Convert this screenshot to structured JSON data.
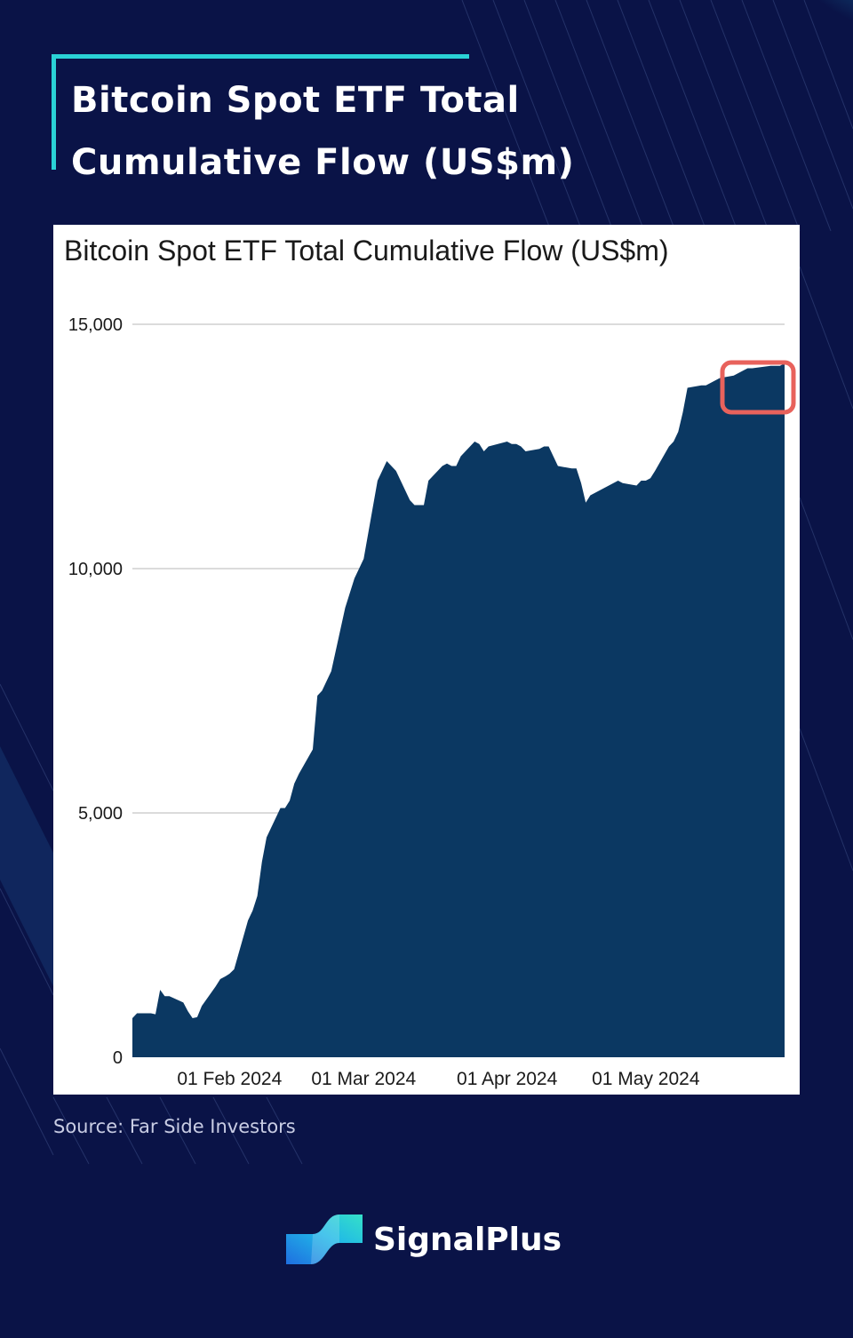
{
  "page": {
    "title": "Bitcoin Spot ETF Total Cumulative Flow (US$m)",
    "source": "Source: Far Side Investors",
    "brand_name": "SignalPlus",
    "colors": {
      "background": "#0a1347",
      "accent": "#2ad2d6",
      "area_fill": "#0b3862",
      "highlight_box": "#e8625c"
    }
  },
  "chart_data": {
    "type": "area",
    "title": "Bitcoin Spot ETF Total Cumulative Flow (US$m)",
    "xlabel": "",
    "ylabel": "",
    "ylim": [
      0,
      15000
    ],
    "yticks": [
      0,
      5000,
      10000,
      15000
    ],
    "ytick_labels": [
      "0",
      "5,000",
      "10,000",
      "15,000"
    ],
    "xtick_labels": [
      "01 Feb 2024",
      "01 Mar 2024",
      "01 Apr 2024",
      "01 May 2024"
    ],
    "xtick_dates": [
      "2024-02-01",
      "2024-03-01",
      "2024-04-01",
      "2024-05-01"
    ],
    "grid": true,
    "annotation": "highlight box around the latest values (late May 2024)",
    "series": [
      {
        "x": [
          "2024-01-11",
          "2024-01-12",
          "2024-01-15",
          "2024-01-16",
          "2024-01-17",
          "2024-01-18",
          "2024-01-19",
          "2024-01-22",
          "2024-01-23",
          "2024-01-24",
          "2024-01-25",
          "2024-01-26",
          "2024-01-29",
          "2024-01-30",
          "2024-01-31",
          "2024-02-01",
          "2024-02-02",
          "2024-02-05",
          "2024-02-06",
          "2024-02-07",
          "2024-02-08",
          "2024-02-09",
          "2024-02-12",
          "2024-02-13",
          "2024-02-14",
          "2024-02-15",
          "2024-02-16",
          "2024-02-19",
          "2024-02-20",
          "2024-02-21",
          "2024-02-22",
          "2024-02-23",
          "2024-02-26",
          "2024-02-27",
          "2024-02-28",
          "2024-02-29",
          "2024-03-01",
          "2024-03-04",
          "2024-03-05",
          "2024-03-06",
          "2024-03-07",
          "2024-03-08",
          "2024-03-11",
          "2024-03-12",
          "2024-03-13",
          "2024-03-14",
          "2024-03-15",
          "2024-03-18",
          "2024-03-19",
          "2024-03-20",
          "2024-03-21",
          "2024-03-22",
          "2024-03-25",
          "2024-03-26",
          "2024-03-27",
          "2024-03-28",
          "2024-04-01",
          "2024-04-02",
          "2024-04-03",
          "2024-04-04",
          "2024-04-05",
          "2024-04-08",
          "2024-04-09",
          "2024-04-10",
          "2024-04-11",
          "2024-04-12",
          "2024-04-15",
          "2024-04-16",
          "2024-04-17",
          "2024-04-18",
          "2024-04-19",
          "2024-04-22",
          "2024-04-23",
          "2024-04-24",
          "2024-04-25",
          "2024-04-26",
          "2024-04-29",
          "2024-04-30",
          "2024-05-01",
          "2024-05-02",
          "2024-05-03",
          "2024-05-06",
          "2024-05-07",
          "2024-05-08",
          "2024-05-09",
          "2024-05-10",
          "2024-05-13",
          "2024-05-14",
          "2024-05-15",
          "2024-05-16",
          "2024-05-17",
          "2024-05-20",
          "2024-05-21",
          "2024-05-22",
          "2024-05-23",
          "2024-05-24",
          "2024-05-28",
          "2024-05-29",
          "2024-05-30",
          "2024-05-31"
        ],
        "values": [
          800,
          900,
          900,
          880,
          1380,
          1250,
          1250,
          1120,
          940,
          800,
          820,
          1050,
          1450,
          1600,
          1650,
          1710,
          1800,
          2800,
          3000,
          3300,
          4000,
          4500,
          5100,
          5100,
          5250,
          5600,
          5800,
          6300,
          7400,
          7500,
          7700,
          7900,
          9200,
          9500,
          9800,
          10000,
          10200,
          11800,
          12000,
          12200,
          12100,
          12000,
          11400,
          11300,
          11300,
          11300,
          11800,
          12100,
          12150,
          12100,
          12100,
          12300,
          12600,
          12550,
          12400,
          12500,
          12600,
          12550,
          12550,
          12500,
          12400,
          12450,
          12500,
          12500,
          12300,
          12100,
          12050,
          12050,
          11750,
          11350,
          11500,
          11650,
          11700,
          11750,
          11800,
          11750,
          11700,
          11800,
          11800,
          11850,
          12000,
          12500,
          12600,
          12800,
          13200,
          13700,
          13750,
          13750,
          13800,
          13850,
          13900,
          13950,
          14000,
          14050,
          14100,
          14100,
          14150,
          14150,
          14150,
          14200
        ]
      }
    ]
  }
}
